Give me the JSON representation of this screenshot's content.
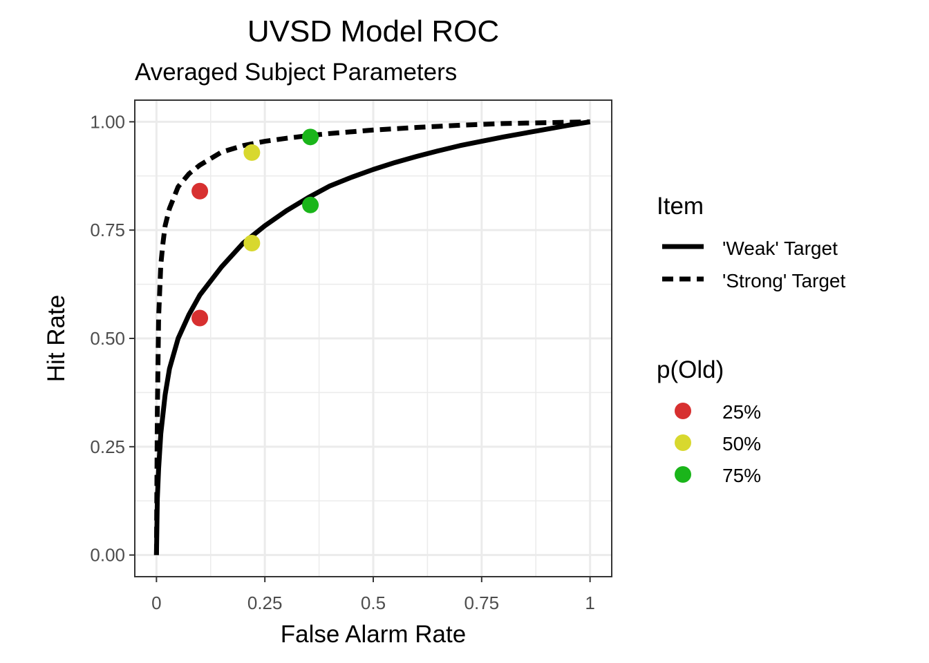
{
  "chart_data": {
    "type": "line",
    "title": "UVSD Model ROC",
    "subtitle": "Averaged Subject Parameters",
    "xlabel": "False Alarm Rate",
    "ylabel": "Hit Rate",
    "xlim": [
      -0.05,
      1.05
    ],
    "ylim": [
      -0.05,
      1.05
    ],
    "x_ticks": [
      0,
      0.25,
      0.5,
      0.75,
      1
    ],
    "x_tick_labels": [
      "0",
      "0.25",
      "0.5",
      "0.75",
      "1"
    ],
    "y_ticks": [
      0,
      0.25,
      0.5,
      0.75,
      1
    ],
    "y_tick_labels": [
      "0.00",
      "0.25",
      "0.50",
      "0.75",
      "1.00"
    ],
    "grid": true,
    "legend_position": "right",
    "line_legend": {
      "title": "Item",
      "entries": [
        {
          "label": "'Weak' Target",
          "style": "solid"
        },
        {
          "label": "'Strong' Target",
          "style": "dashed"
        }
      ]
    },
    "point_legend": {
      "title": "p(Old)",
      "entries": [
        {
          "label": "25%",
          "color": "#d73030"
        },
        {
          "label": "50%",
          "color": "#d8d82e"
        },
        {
          "label": "75%",
          "color": "#1ab51a"
        }
      ]
    },
    "series": [
      {
        "name": "'Weak' Target",
        "style": "solid",
        "color": "#000000",
        "x": [
          0.0,
          0.002,
          0.005,
          0.01,
          0.02,
          0.03,
          0.05,
          0.075,
          0.1,
          0.15,
          0.2,
          0.25,
          0.3,
          0.35,
          0.4,
          0.45,
          0.5,
          0.55,
          0.6,
          0.65,
          0.7,
          0.75,
          0.8,
          0.85,
          0.9,
          0.95,
          1.0
        ],
        "y": [
          0.0,
          0.13,
          0.2,
          0.28,
          0.37,
          0.43,
          0.5,
          0.555,
          0.6,
          0.665,
          0.72,
          0.76,
          0.795,
          0.825,
          0.852,
          0.872,
          0.89,
          0.906,
          0.92,
          0.933,
          0.945,
          0.955,
          0.965,
          0.974,
          0.983,
          0.992,
          1.0
        ]
      },
      {
        "name": "'Strong' Target",
        "style": "dashed",
        "color": "#000000",
        "x": [
          0.0,
          0.002,
          0.005,
          0.01,
          0.015,
          0.02,
          0.03,
          0.05,
          0.075,
          0.1,
          0.15,
          0.2,
          0.25,
          0.3,
          0.35,
          0.4,
          0.5,
          0.6,
          0.7,
          0.8,
          0.9,
          1.0
        ],
        "y": [
          0.0,
          0.33,
          0.55,
          0.67,
          0.72,
          0.76,
          0.8,
          0.85,
          0.88,
          0.9,
          0.93,
          0.945,
          0.955,
          0.962,
          0.968,
          0.973,
          0.981,
          0.987,
          0.992,
          0.996,
          0.998,
          1.0
        ]
      }
    ],
    "points": [
      {
        "p_old": "25%",
        "x": 0.1,
        "y": 0.84,
        "color": "#d73030"
      },
      {
        "p_old": "25%",
        "x": 0.1,
        "y": 0.547,
        "color": "#d73030"
      },
      {
        "p_old": "50%",
        "x": 0.22,
        "y": 0.929,
        "color": "#d8d82e"
      },
      {
        "p_old": "50%",
        "x": 0.22,
        "y": 0.72,
        "color": "#d8d82e"
      },
      {
        "p_old": "75%",
        "x": 0.355,
        "y": 0.965,
        "color": "#1ab51a"
      },
      {
        "p_old": "75%",
        "x": 0.355,
        "y": 0.808,
        "color": "#1ab51a"
      }
    ]
  }
}
